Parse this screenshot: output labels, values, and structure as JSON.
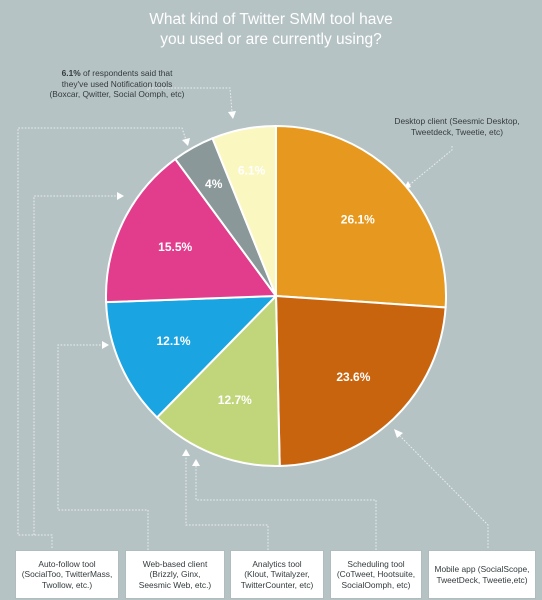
{
  "chart_data": {
    "type": "pie",
    "title_lines": [
      "What kind of Twitter SMM tool have",
      "you used or are currently using?"
    ],
    "slices": [
      {
        "label_lines": [
          "Desktop client (Seesmic Desktop,",
          "Tweetdeck, Tweetie, etc)"
        ],
        "value": 26.1,
        "display": "26.1%",
        "color": "#e6991e"
      },
      {
        "label_lines": [
          "Mobile app (SocialScope,",
          "TweetDeck, Tweetie,etc)"
        ],
        "value": 23.6,
        "display": "23.6%",
        "color": "#c9640e"
      },
      {
        "label_lines": [
          "Analytics tool",
          "(Klout, Twitalyzer,",
          "TwitterCounter, etc)"
        ],
        "value": 12.7,
        "display": "12.7%",
        "color": "#c1d67a"
      },
      {
        "label_lines": [
          "Auto-follow tool",
          "(SocialToo, TwitterMass,",
          "Twollow, etc.)"
        ],
        "value": 12.1,
        "display": "12.1%",
        "color": "#1aa4e1"
      },
      {
        "label_lines": [
          "Web-based client",
          "(Brizzly, Ginx,",
          "Seesmic Web, etc.)"
        ],
        "value": 15.5,
        "display": "15.5%",
        "color": "#e23d8d"
      },
      {
        "label_lines": [
          "Scheduling tool",
          "(CoTweet, Hootsuite,",
          "SocialOomph, etc)"
        ],
        "value": 4,
        "display": "4%",
        "color": "#8a9899"
      },
      {
        "label_lines": [],
        "value": 6.1,
        "display": "6.1%",
        "color": "#fbf7c1"
      }
    ],
    "note": {
      "strong": "6.1%",
      "text_lines": [
        " of respondents said that",
        "they've used Notification tools",
        "(Boxcar, Qwitter, Social Oomph, etc)"
      ]
    }
  },
  "colors": {
    "background": "#b6c3c5",
    "title": "#ffffff"
  }
}
